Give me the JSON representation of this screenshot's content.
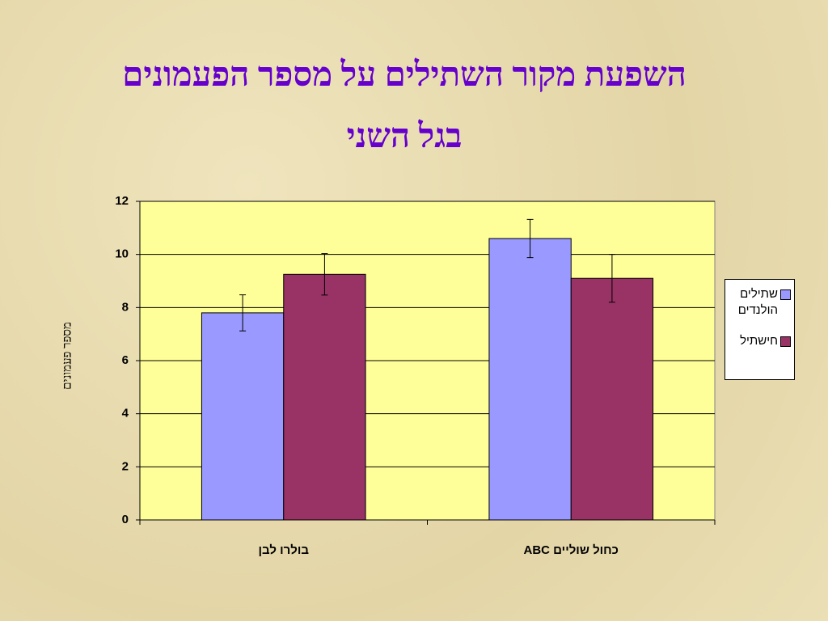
{
  "chart_data": {
    "type": "bar",
    "title": "השפעת מקור השתילים על מספר הפעמונים בגל השני",
    "y_label": "מספר פעמונים",
    "categories": [
      "בולרו לבן",
      "כחול שוליים ABC"
    ],
    "series": [
      {
        "name": "שתילים הולנדים",
        "color": "#9999ff",
        "values": [
          7.8,
          10.6
        ],
        "errors": [
          0.68,
          0.72
        ]
      },
      {
        "name": "חישתיל",
        "color": "#993366",
        "values": [
          9.25,
          9.1
        ],
        "errors": [
          0.78,
          0.9
        ]
      }
    ],
    "ylim": [
      0,
      12
    ],
    "yticks": [
      0,
      2,
      4,
      6,
      8,
      10,
      12
    ],
    "grid": true,
    "legend": "right"
  }
}
